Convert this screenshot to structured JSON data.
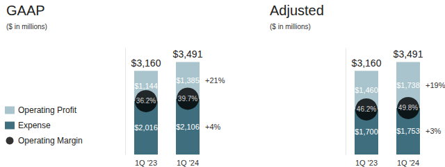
{
  "chart_data": [
    {
      "type": "bar",
      "stacked": true,
      "title": "GAAP",
      "subtitle": "($ in millions)",
      "categories": [
        "1Q '23",
        "1Q '24"
      ],
      "series": [
        {
          "name": "Operating Profit",
          "color": "#a9c4cc",
          "values": [
            1144,
            1385
          ],
          "value_labels": [
            "$1,144",
            "$1,385"
          ],
          "change": 21,
          "change_label": "+21%"
        },
        {
          "name": "Expense",
          "color": "#3f6f7f",
          "values": [
            2016,
            2106
          ],
          "value_labels": [
            "$2,016",
            "$2,106"
          ],
          "change": 4,
          "change_label": "+4%"
        },
        {
          "name": "Operating Margin",
          "type": "scatter",
          "marker": "circle",
          "color": "#000000",
          "values": [
            36.2,
            39.7
          ],
          "value_labels": [
            "36.2%",
            "39.7%"
          ]
        }
      ],
      "totals": [
        3160,
        3491
      ],
      "total_labels": [
        "$3,160",
        "$3,491"
      ],
      "ylim": [
        0,
        4000
      ],
      "data_labels": true,
      "tick_labels": "x",
      "legend": "left"
    },
    {
      "type": "bar",
      "stacked": true,
      "title": "Adjusted",
      "subtitle": "($ in millions)",
      "categories": [
        "1Q '23",
        "1Q '24"
      ],
      "series": [
        {
          "name": "Operating Profit",
          "color": "#a9c4cc",
          "values": [
            1460,
            1738
          ],
          "value_labels": [
            "$1,460",
            "$1,738"
          ],
          "change": 19,
          "change_label": "+19%"
        },
        {
          "name": "Expense",
          "color": "#3f6f7f",
          "values": [
            1700,
            1753
          ],
          "value_labels": [
            "$1,700",
            "$1,753"
          ],
          "change": 3,
          "change_label": "+3%"
        },
        {
          "name": "Operating Margin",
          "type": "scatter",
          "marker": "circle",
          "color": "#000000",
          "values": [
            46.2,
            49.8
          ],
          "value_labels": [
            "46.2%",
            "49.8%"
          ]
        }
      ],
      "totals": [
        3160,
        3491
      ],
      "total_labels": [
        "$3,160",
        "$3,491"
      ],
      "ylim": [
        0,
        4000
      ],
      "data_labels": true,
      "tick_labels": "x"
    }
  ]
}
